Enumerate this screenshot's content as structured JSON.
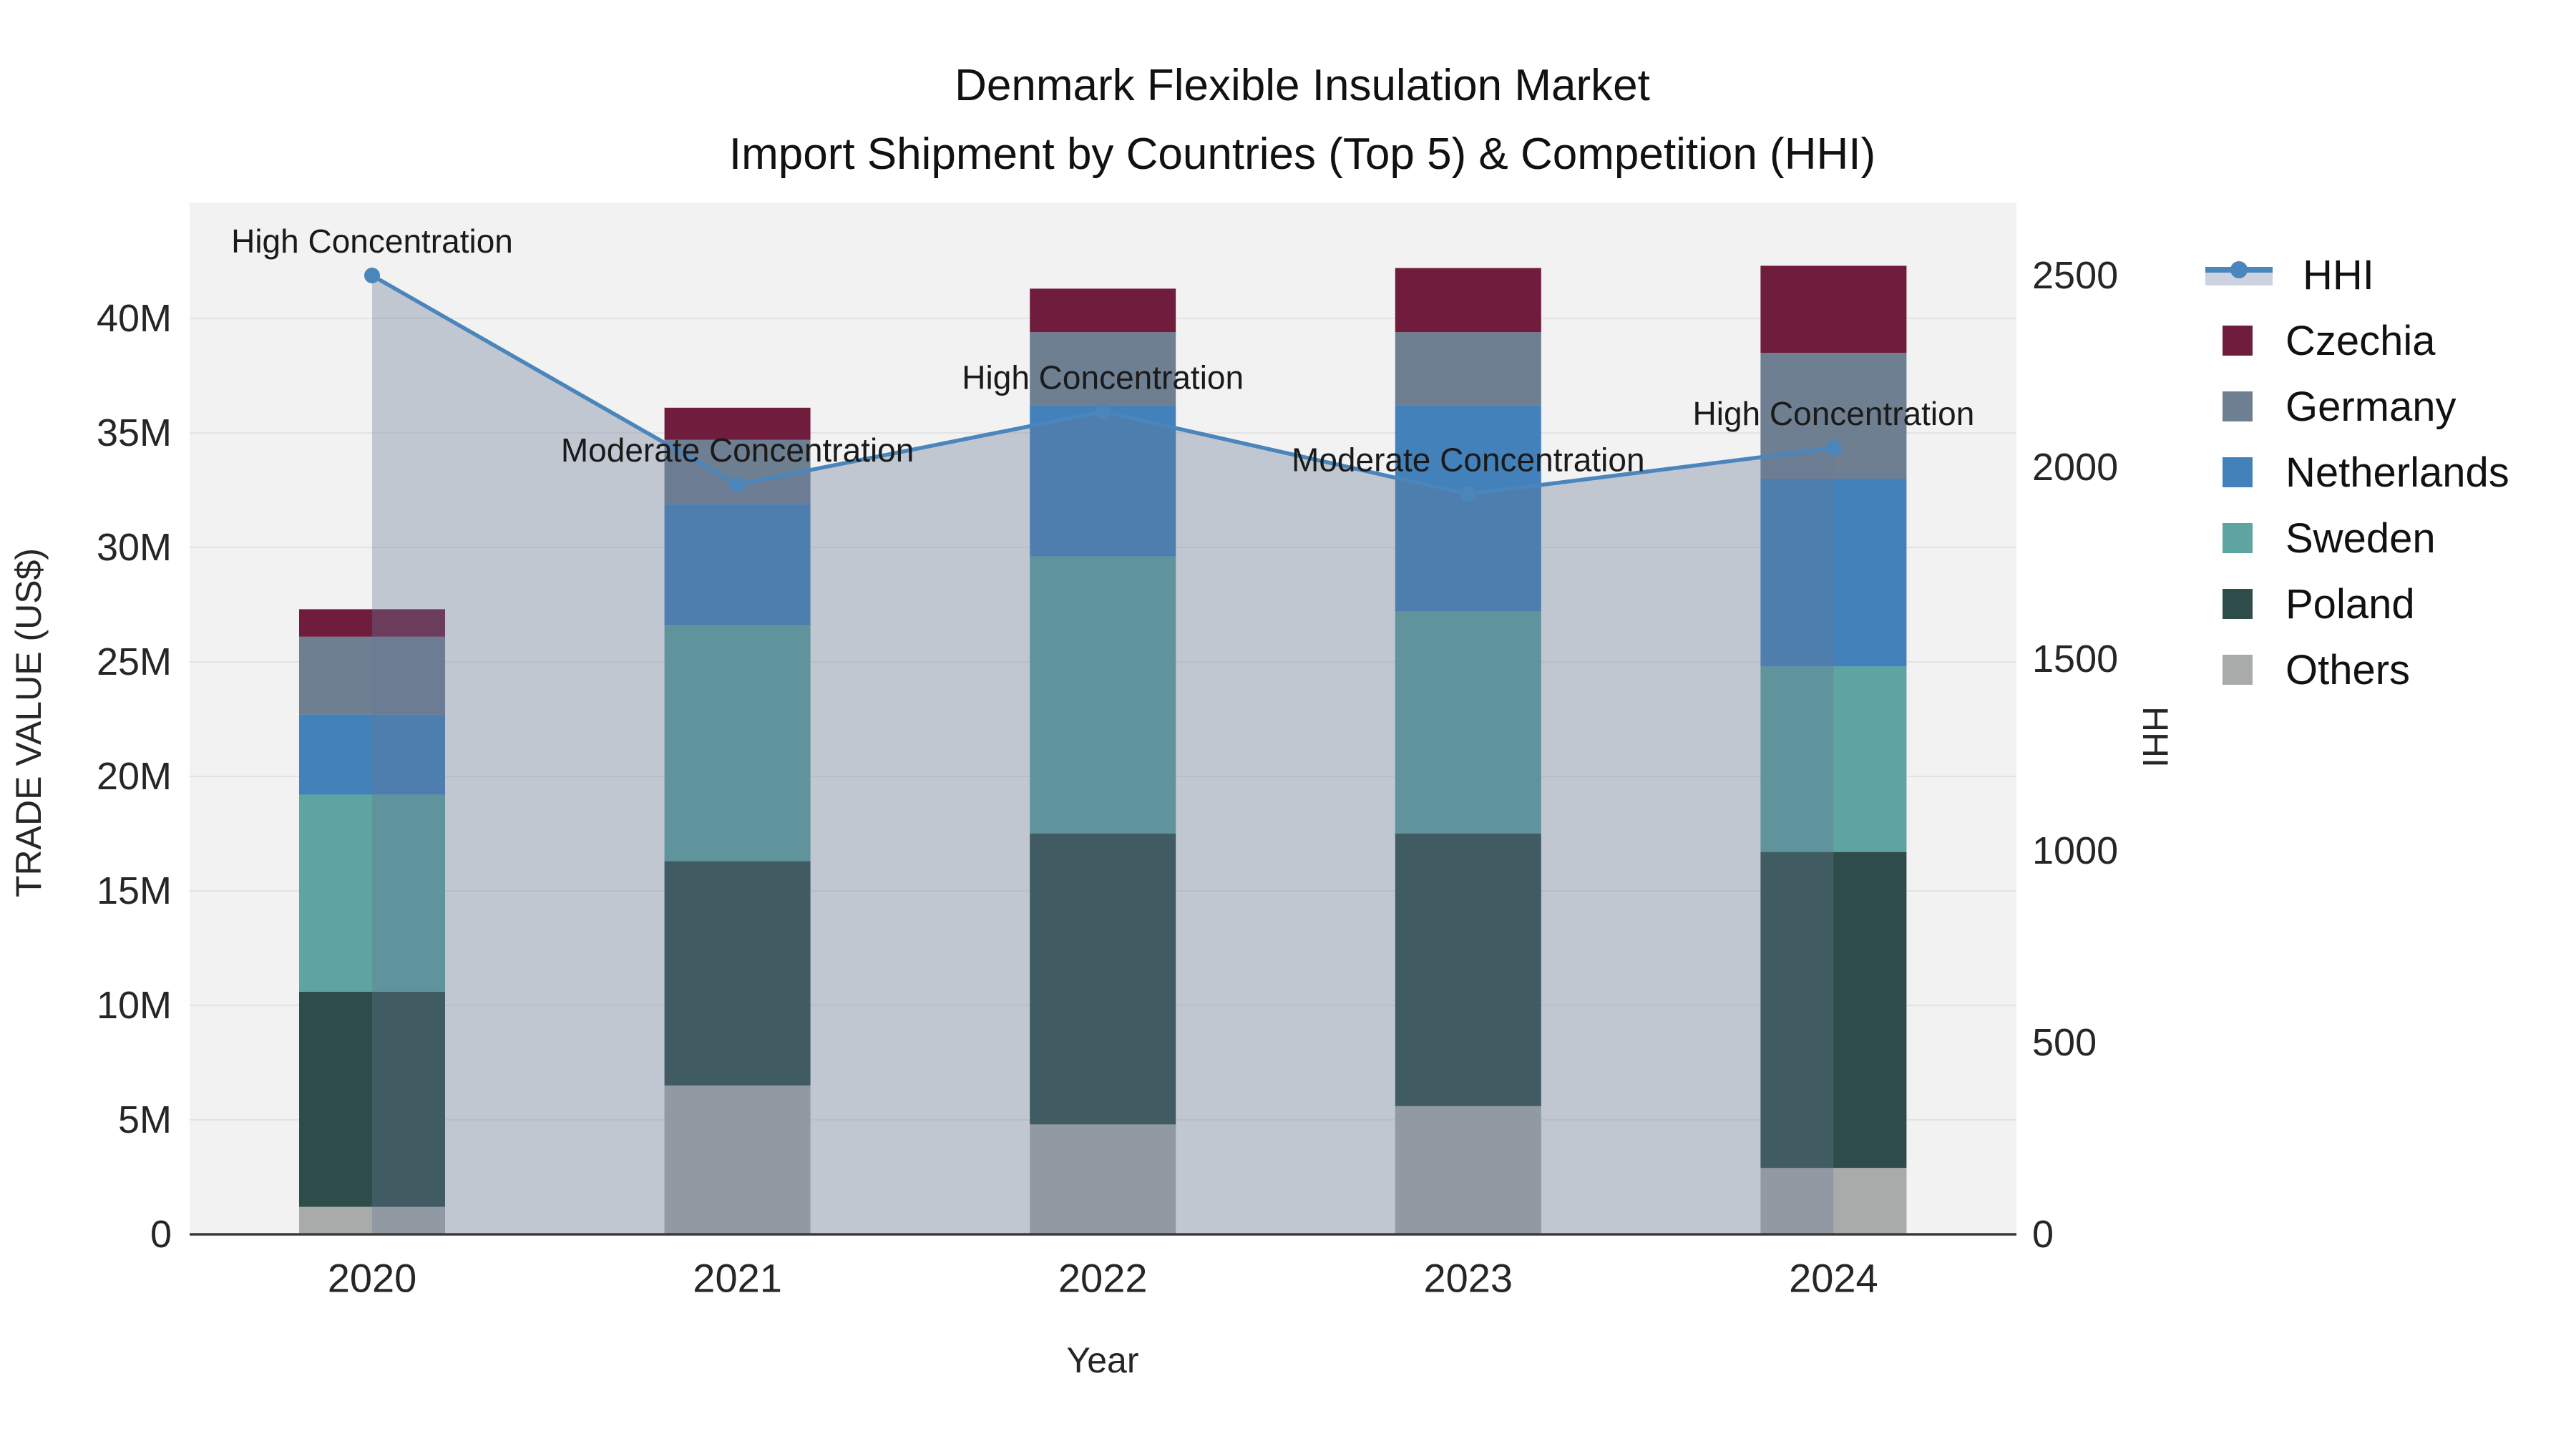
{
  "title": {
    "line1": "Denmark Flexible Insulation Market",
    "line2": "Import Shipment by Countries (Top 5) & Competition (HHI)"
  },
  "axes": {
    "x": {
      "title": "Year",
      "categories": [
        "2020",
        "2021",
        "2022",
        "2023",
        "2024"
      ]
    },
    "y_left": {
      "title": "TRADE VALUE (US$)",
      "tick_labels": [
        "0",
        "5M",
        "10M",
        "15M",
        "20M",
        "25M",
        "30M",
        "35M",
        "40M"
      ],
      "tick_values_millions": [
        0,
        5,
        10,
        15,
        20,
        25,
        30,
        35,
        40
      ]
    },
    "y_right": {
      "title": "HHI",
      "tick_labels": [
        "0",
        "500",
        "1000",
        "1500",
        "2000",
        "2500"
      ],
      "tick_values": [
        0,
        500,
        1000,
        1500,
        2000,
        2500
      ]
    }
  },
  "legend": {
    "items": [
      {
        "label": "HHI",
        "type": "line",
        "color": "#4a85bc",
        "band_color": "#ccd3de"
      },
      {
        "label": "Czechia",
        "type": "swatch",
        "color": "#6f1c3d"
      },
      {
        "label": "Germany",
        "type": "swatch",
        "color": "#6f7f92"
      },
      {
        "label": "Netherlands",
        "type": "swatch",
        "color": "#4381bb"
      },
      {
        "label": "Sweden",
        "type": "swatch",
        "color": "#5ea4a1"
      },
      {
        "label": "Poland",
        "type": "swatch",
        "color": "#2e4c49"
      },
      {
        "label": "Others",
        "type": "swatch",
        "color": "#a9abaa"
      }
    ]
  },
  "chart_data": {
    "type": "bar+line",
    "title": "Denmark Flexible Insulation Market — Import Shipment by Countries (Top 5) & Competition (HHI)",
    "x": [
      2020,
      2021,
      2022,
      2023,
      2024
    ],
    "bar_value_unit": "million US$",
    "stack_order_bottom_to_top": [
      "Others",
      "Poland",
      "Sweden",
      "Netherlands",
      "Germany",
      "Czechia"
    ],
    "series": [
      {
        "name": "Others",
        "color": "#a9abaa",
        "values": [
          1.2,
          6.5,
          4.8,
          5.6,
          2.9
        ]
      },
      {
        "name": "Poland",
        "color": "#2e4c49",
        "values": [
          9.4,
          9.8,
          12.7,
          11.9,
          13.8
        ]
      },
      {
        "name": "Sweden",
        "color": "#5ea4a1",
        "values": [
          8.6,
          10.3,
          12.1,
          9.7,
          8.1
        ]
      },
      {
        "name": "Netherlands",
        "color": "#4381bb",
        "values": [
          3.5,
          5.3,
          6.6,
          9.0,
          8.2
        ]
      },
      {
        "name": "Germany",
        "color": "#6f7f92",
        "values": [
          3.4,
          2.8,
          3.2,
          3.2,
          5.5
        ]
      },
      {
        "name": "Czechia",
        "color": "#6f1c3d",
        "values": [
          1.2,
          1.4,
          1.9,
          2.8,
          3.8
        ]
      }
    ],
    "bar_totals_millions": [
      27.3,
      36.1,
      41.3,
      42.2,
      42.3
    ],
    "hhi_line": {
      "name": "HHI",
      "color": "#4a85bc",
      "area_fill": "rgba(100,120,150,0.35)",
      "values": [
        2500,
        1955,
        2145,
        1930,
        2050
      ]
    },
    "annotations": [
      {
        "x": 2020,
        "text": "High Concentration"
      },
      {
        "x": 2021,
        "text": "Moderate Concentration"
      },
      {
        "x": 2022,
        "text": "High Concentration"
      },
      {
        "x": 2023,
        "text": "Moderate Concentration"
      },
      {
        "x": 2024,
        "text": "High Concentration"
      }
    ],
    "y_left_range_millions": [
      0,
      45
    ],
    "y_right_range": [
      0,
      2690
    ],
    "grid": true,
    "legend_position": "right"
  },
  "colors": {
    "plot_bg": "#f2f2f2",
    "grid": "#e3e3e3",
    "axis_line": "#3a3a3a",
    "tick_text": "#262626",
    "annotation_text": "#1a1a1a"
  }
}
